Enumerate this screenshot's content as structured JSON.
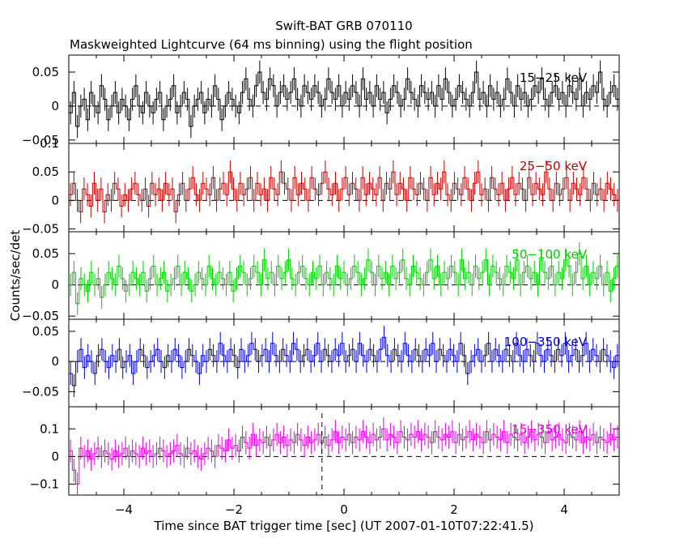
{
  "chart_data": {
    "type": "line",
    "title": "Swift-BAT GRB 070110",
    "subtitle": "Maskweighted Lightcurve (64 ms binning) using the flight position",
    "xlabel": "Time since BAT trigger time [sec] (UT 2007-01-10T07:22:41.5)",
    "ylabel": "Counts/sec/det",
    "xlim": [
      -5,
      5
    ],
    "bin_width": 0.064,
    "xticks": [
      -4,
      -2,
      0,
      2,
      4
    ],
    "xtick_labels": [
      "−4",
      "−2",
      "0",
      "2",
      "4"
    ],
    "trigger_marker_x": -0.4,
    "panels": [
      {
        "name": "15-25 keV",
        "label": "15−25 keV",
        "color": "#000000",
        "ylim": [
          -0.055,
          0.075
        ],
        "yticks": [
          -0.05,
          0,
          0.05
        ],
        "ytick_labels": [
          "−0.05",
          "0",
          "0.05"
        ],
        "values": [
          -0.01,
          0.02,
          -0.03,
          0.0,
          0.01,
          -0.02,
          0.02,
          0.0,
          -0.01,
          0.03,
          0.01,
          -0.02,
          0.0,
          0.02,
          -0.01,
          0.01,
          0.0,
          -0.02,
          0.01,
          0.03,
          0.0,
          -0.01,
          0.02,
          0.0,
          -0.01,
          0.01,
          0.02,
          -0.02,
          0.0,
          0.01,
          0.03,
          -0.01,
          0.0,
          0.02,
          0.01,
          -0.03,
          0.0,
          0.01,
          0.02,
          -0.01,
          0.01,
          0.0,
          0.03,
          0.01,
          -0.02,
          0.0,
          0.02,
          0.01,
          0.0,
          -0.01,
          0.02,
          0.04,
          0.01,
          0.0,
          0.03,
          0.05,
          0.02,
          0.01,
          0.04,
          0.03,
          0.0,
          0.02,
          0.03,
          0.01,
          0.02,
          0.04,
          0.01,
          0.0,
          0.03,
          0.02,
          0.01,
          0.03,
          0.02,
          0.0,
          0.01,
          0.04,
          0.02,
          0.01,
          0.03,
          0.0,
          0.02,
          0.01,
          0.03,
          0.02,
          0.0,
          0.04,
          0.01,
          0.02,
          0.0,
          0.03,
          0.01,
          0.02,
          -0.01,
          0.01,
          0.03,
          0.02,
          0.0,
          0.01,
          0.04,
          0.02,
          0.01,
          0.0,
          0.03,
          0.02,
          0.01,
          0.02,
          0.0,
          0.03,
          0.01,
          0.04,
          0.02,
          0.0,
          0.01,
          0.03,
          0.02,
          0.01,
          0.0,
          0.02,
          0.05,
          0.01,
          0.02,
          0.0,
          0.03,
          0.01,
          0.02,
          0.0,
          0.01,
          0.04,
          0.02,
          0.0,
          0.03,
          0.01,
          0.02,
          0.0,
          0.01,
          0.03,
          0.02,
          0.04,
          0.01,
          0.0,
          0.02,
          0.03,
          0.01,
          0.02,
          0.0,
          0.03,
          0.02,
          0.01,
          0.04,
          0.0,
          0.02,
          0.01,
          0.03,
          0.02,
          0.05,
          0.01,
          0.0,
          0.02,
          0.03,
          0.01
        ]
      },
      {
        "name": "25-50 keV",
        "label": "25−50 keV",
        "color": "#c00000",
        "ylim": [
          -0.055,
          0.1
        ],
        "yticks": [
          -0.05,
          0,
          0.05,
          0.1
        ],
        "ytick_labels": [
          "−0.05",
          "0",
          "0.05",
          "0.1"
        ],
        "values": [
          0.01,
          0.03,
          0.0,
          -0.02,
          0.02,
          0.01,
          -0.01,
          0.03,
          0.0,
          0.02,
          -0.02,
          0.01,
          0.0,
          0.03,
          0.02,
          -0.01,
          0.01,
          0.0,
          0.02,
          0.03,
          0.01,
          0.0,
          0.02,
          -0.01,
          0.03,
          0.01,
          0.02,
          0.0,
          0.03,
          0.01,
          0.02,
          -0.02,
          0.01,
          0.03,
          0.0,
          0.02,
          0.04,
          0.01,
          0.0,
          0.03,
          0.02,
          0.01,
          0.04,
          0.0,
          0.02,
          0.03,
          0.01,
          0.05,
          0.02,
          0.0,
          0.03,
          0.01,
          0.02,
          0.04,
          0.0,
          0.03,
          0.01,
          0.02,
          0.0,
          0.04,
          0.02,
          0.01,
          0.05,
          0.03,
          0.02,
          0.0,
          0.04,
          0.01,
          0.03,
          0.02,
          0.0,
          0.04,
          0.02,
          0.01,
          0.03,
          0.05,
          0.02,
          0.01,
          0.03,
          0.0,
          0.02,
          0.04,
          0.01,
          0.03,
          0.02,
          0.0,
          0.04,
          0.01,
          0.03,
          0.02,
          0.01,
          0.04,
          0.0,
          0.03,
          0.02,
          0.05,
          0.01,
          0.03,
          0.02,
          0.0,
          0.04,
          0.02,
          0.01,
          0.03,
          0.02,
          0.0,
          0.04,
          0.01,
          0.03,
          0.02,
          0.05,
          0.01,
          0.0,
          0.03,
          0.02,
          0.01,
          0.04,
          0.02,
          0.0,
          0.03,
          0.05,
          0.01,
          0.02,
          0.0,
          0.04,
          0.02,
          0.01,
          0.03,
          0.0,
          0.02,
          0.04,
          0.01,
          0.03,
          0.02,
          0.0,
          0.04,
          0.01,
          0.03,
          0.02,
          0.01,
          0.05,
          0.02,
          0.0,
          0.03,
          0.01,
          0.02,
          0.04,
          0.0,
          0.03,
          0.02,
          0.01,
          0.04,
          0.02,
          0.0,
          0.03,
          0.01,
          0.02,
          0.0,
          0.03,
          0.02,
          0.01,
          0.0
        ]
      },
      {
        "name": "50-100 keV",
        "label": "50−100 keV",
        "color": "#00cc00",
        "ylim": [
          -0.055,
          0.085
        ],
        "yticks": [
          -0.05,
          0,
          0.05
        ],
        "ytick_labels": [
          "−0.05",
          "0",
          "0.05"
        ],
        "values": [
          0.0,
          0.02,
          -0.03,
          0.01,
          0.0,
          -0.01,
          0.02,
          0.0,
          0.01,
          -0.02,
          0.0,
          0.02,
          0.01,
          0.0,
          0.03,
          0.01,
          -0.01,
          0.0,
          0.02,
          0.01,
          0.0,
          0.02,
          -0.01,
          0.01,
          0.03,
          0.0,
          0.01,
          0.02,
          -0.01,
          0.0,
          0.01,
          0.03,
          0.0,
          0.02,
          0.01,
          -0.01,
          0.0,
          0.02,
          0.01,
          0.0,
          0.03,
          0.01,
          0.0,
          0.02,
          0.01,
          0.0,
          0.02,
          -0.01,
          0.01,
          0.03,
          0.02,
          0.0,
          0.01,
          0.03,
          0.02,
          0.0,
          0.04,
          0.01,
          0.02,
          0.0,
          0.03,
          0.01,
          0.02,
          0.04,
          0.01,
          0.0,
          0.02,
          0.03,
          0.01,
          0.0,
          0.02,
          0.01,
          0.03,
          0.0,
          0.02,
          0.01,
          0.0,
          0.03,
          0.01,
          0.02,
          0.0,
          0.01,
          0.03,
          0.02,
          0.0,
          0.01,
          0.04,
          0.02,
          0.0,
          0.03,
          0.01,
          0.02,
          0.0,
          0.03,
          0.01,
          0.02,
          0.04,
          0.01,
          0.0,
          0.03,
          0.02,
          0.01,
          0.0,
          0.02,
          0.04,
          0.01,
          0.03,
          0.0,
          0.02,
          0.01,
          0.03,
          0.02,
          0.0,
          0.04,
          0.01,
          0.02,
          0.0,
          0.03,
          0.01,
          0.02,
          0.04,
          0.0,
          0.03,
          0.02,
          0.01,
          0.0,
          0.03,
          0.02,
          0.01,
          0.04,
          0.0,
          0.02,
          0.03,
          0.01,
          0.02,
          0.0,
          0.04,
          0.02,
          0.01,
          0.03,
          0.0,
          0.02,
          0.01,
          0.04,
          0.03,
          0.0,
          0.02,
          0.05,
          0.01,
          0.03,
          0.0,
          0.02,
          0.01,
          0.03,
          0.0,
          0.02,
          -0.01,
          0.01,
          0.03
        ]
      },
      {
        "name": "100-350 keV",
        "label": "100−350 keV",
        "color": "#0000cc",
        "ylim": [
          -0.075,
          0.07
        ],
        "yticks": [
          -0.05,
          0,
          0.05
        ],
        "ytick_labels": [
          "−0.05",
          "0",
          "0.05"
        ],
        "values": [
          -0.02,
          -0.04,
          0.0,
          0.02,
          -0.01,
          0.01,
          0.0,
          -0.02,
          0.01,
          0.02,
          0.0,
          -0.01,
          0.01,
          0.0,
          0.02,
          -0.01,
          0.0,
          0.01,
          -0.02,
          0.0,
          0.02,
          0.01,
          -0.01,
          0.0,
          0.01,
          0.02,
          0.0,
          -0.01,
          0.01,
          0.0,
          0.02,
          0.01,
          -0.01,
          0.0,
          0.02,
          0.01,
          0.0,
          -0.02,
          0.01,
          0.0,
          0.02,
          0.01,
          0.0,
          0.03,
          0.01,
          0.0,
          0.02,
          0.01,
          -0.01,
          0.02,
          0.0,
          0.01,
          0.03,
          0.02,
          0.0,
          0.01,
          0.02,
          0.0,
          0.03,
          0.01,
          0.0,
          0.02,
          0.01,
          0.0,
          0.03,
          0.02,
          0.0,
          0.01,
          0.02,
          0.0,
          0.01,
          0.03,
          0.0,
          0.02,
          0.01,
          0.0,
          0.02,
          0.01,
          0.03,
          0.0,
          0.01,
          0.02,
          0.0,
          0.03,
          0.01,
          0.0,
          0.02,
          0.01,
          0.0,
          0.02,
          0.04,
          0.01,
          0.0,
          0.02,
          0.01,
          0.0,
          0.03,
          0.01,
          0.0,
          0.02,
          0.01,
          0.0,
          0.02,
          0.01,
          0.03,
          0.0,
          0.02,
          0.01,
          0.0,
          0.02,
          0.01,
          0.0,
          0.03,
          0.01,
          -0.02,
          0.0,
          0.01,
          0.02,
          0.0,
          0.01,
          0.03,
          0.0,
          0.02,
          0.01,
          0.0,
          0.02,
          0.01,
          0.0,
          0.03,
          0.01,
          0.0,
          0.02,
          0.01,
          0.0,
          0.03,
          0.01,
          0.0,
          0.02,
          0.01,
          0.0,
          0.02,
          0.01,
          0.03,
          0.0,
          0.01,
          0.02,
          0.0,
          0.01,
          0.03,
          0.0,
          0.02,
          0.01,
          0.0,
          0.02,
          0.01,
          0.0,
          -0.01,
          0.01
        ]
      },
      {
        "name": "15-350 keV",
        "label": "15−350 keV",
        "color": "#dd00dd",
        "ylim": [
          -0.14,
          0.18
        ],
        "yticks": [
          -0.1,
          0,
          0.1
        ],
        "ytick_labels": [
          "−0.1",
          "0",
          "0.1"
        ],
        "values": [
          0.02,
          -0.05,
          -0.1,
          0.03,
          0.0,
          0.02,
          -0.01,
          0.01,
          0.03,
          0.0,
          0.02,
          0.01,
          -0.01,
          0.02,
          0.0,
          0.01,
          0.03,
          0.0,
          0.02,
          0.01,
          0.0,
          0.03,
          0.01,
          0.02,
          0.0,
          0.01,
          0.03,
          0.02,
          0.0,
          0.01,
          0.02,
          0.04,
          0.01,
          0.0,
          0.03,
          0.01,
          0.02,
          0.0,
          -0.01,
          0.01,
          0.03,
          0.02,
          0.0,
          0.04,
          0.03,
          0.02,
          0.06,
          0.03,
          0.04,
          0.02,
          0.07,
          0.05,
          0.03,
          0.08,
          0.04,
          0.06,
          0.05,
          0.07,
          0.04,
          0.06,
          0.08,
          0.05,
          0.07,
          0.04,
          0.06,
          0.05,
          0.08,
          0.06,
          0.04,
          0.07,
          0.05,
          0.06,
          0.08,
          0.05,
          0.07,
          0.04,
          0.06,
          0.09,
          0.05,
          0.07,
          0.06,
          0.08,
          0.05,
          0.07,
          0.06,
          0.09,
          0.07,
          0.05,
          0.08,
          0.06,
          0.07,
          0.1,
          0.06,
          0.08,
          0.07,
          0.05,
          0.09,
          0.07,
          0.06,
          0.08,
          0.07,
          0.09,
          0.06,
          0.08,
          0.07,
          0.05,
          0.09,
          0.07,
          0.06,
          0.08,
          0.07,
          0.09,
          0.05,
          0.08,
          0.06,
          0.07,
          0.09,
          0.06,
          0.08,
          0.07,
          0.05,
          0.09,
          0.06,
          0.08,
          0.07,
          0.06,
          0.09,
          0.05,
          0.08,
          0.07,
          0.06,
          0.08,
          0.05,
          0.07,
          0.09,
          0.06,
          0.08,
          0.07,
          0.05,
          0.09,
          0.06,
          0.07,
          0.08,
          0.06,
          0.05,
          0.08,
          0.07,
          0.06,
          0.09,
          0.05,
          0.07,
          0.06,
          0.08,
          0.05,
          0.07,
          0.06,
          0.05,
          0.08,
          0.06,
          0.07
        ]
      }
    ]
  }
}
